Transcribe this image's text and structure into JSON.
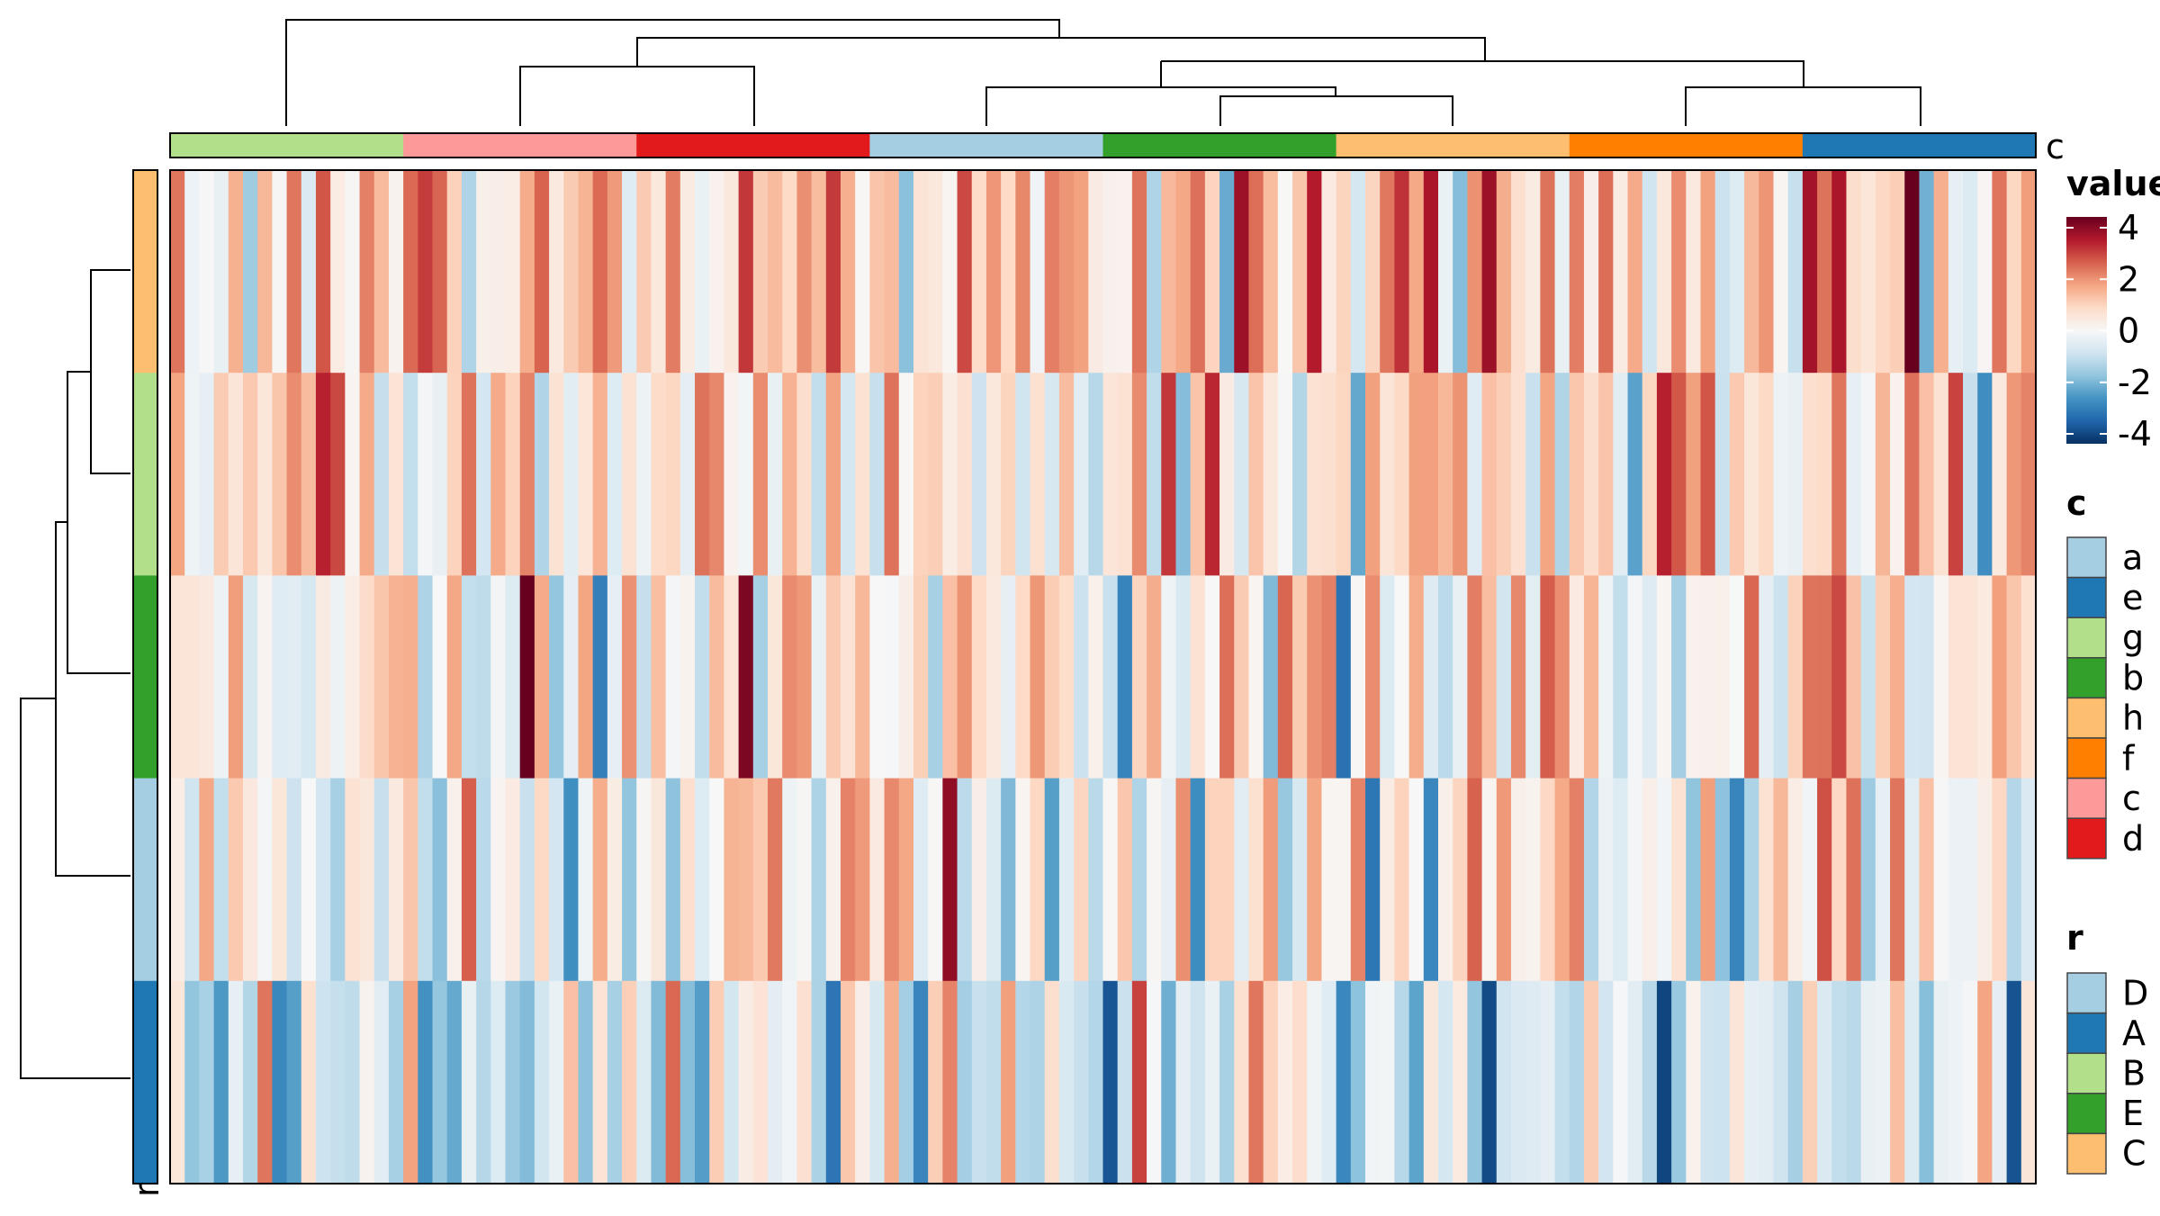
{
  "chart_data": {
    "type": "heatmap",
    "n_rows": 5,
    "n_cols": 128,
    "row_groups": [
      "C",
      "B",
      "E",
      "D",
      "A"
    ],
    "column_groups": [
      "g",
      "c",
      "d",
      "a",
      "b",
      "h",
      "f",
      "e"
    ],
    "column_annotation_label": "c",
    "row_annotation_label": "r",
    "value_range": [
      -4,
      4
    ],
    "column_dendrogram": {
      "order": [
        "g",
        "c",
        "d",
        "a",
        "b",
        "h",
        "f",
        "e"
      ]
    },
    "row_dendrogram": {
      "order": [
        "C",
        "B",
        "E",
        "D",
        "A"
      ]
    }
  },
  "legends": {
    "value": {
      "title": "value",
      "ticks": [
        "4",
        "2",
        "0",
        "-2",
        "-4"
      ],
      "tick_values": [
        4,
        2,
        0,
        -2,
        -4
      ],
      "colors": [
        "#67001f",
        "#b2182b",
        "#d6604d",
        "#f4a582",
        "#fddbc7",
        "#f7f7f7",
        "#d1e5f0",
        "#92c5de",
        "#4393c3",
        "#2166ac",
        "#053061"
      ]
    },
    "c": {
      "title": "c",
      "items": [
        {
          "label": "a",
          "color": "#a6cee3"
        },
        {
          "label": "e",
          "color": "#1f78b4"
        },
        {
          "label": "g",
          "color": "#b2df8a"
        },
        {
          "label": "b",
          "color": "#33a02c"
        },
        {
          "label": "h",
          "color": "#fdbf6f"
        },
        {
          "label": "f",
          "color": "#ff7f00"
        },
        {
          "label": "c",
          "color": "#fb9a99"
        },
        {
          "label": "d",
          "color": "#e31a1c"
        }
      ]
    },
    "r": {
      "title": "r",
      "items": [
        {
          "label": "D",
          "color": "#a6cee3"
        },
        {
          "label": "A",
          "color": "#1f78b4"
        },
        {
          "label": "B",
          "color": "#b2df8a"
        },
        {
          "label": "E",
          "color": "#33a02c"
        },
        {
          "label": "C",
          "color": "#fdbf6f"
        }
      ]
    }
  },
  "axis_labels": {
    "column_annotation": "c",
    "row_annotation": "r"
  }
}
